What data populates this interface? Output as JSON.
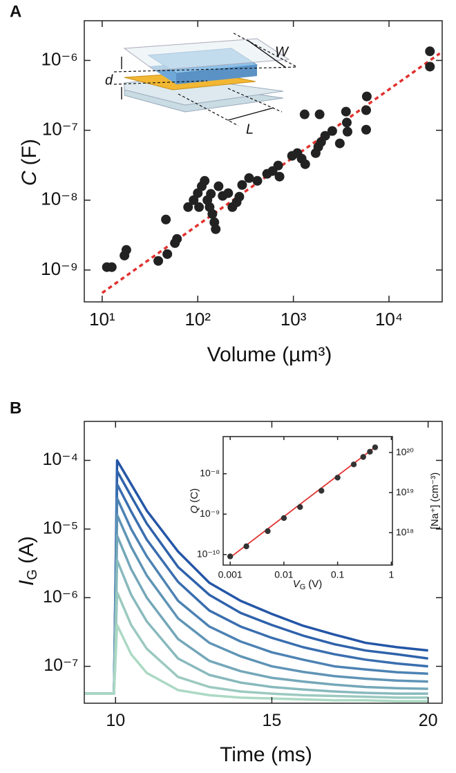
{
  "chart_data": [
    {
      "type": "scatter",
      "label": "A",
      "xlabel": "Volume (µm³)",
      "ylabel": [
        "C",
        "(F)"
      ],
      "annotations": [
        "W",
        "d",
        "L"
      ],
      "xlog": true,
      "ylog": true,
      "xlim": [
        6.5,
        36000
      ],
      "ylim": [
        3.5e-10,
        3.7e-06
      ],
      "xticks": [
        {
          "value": 10,
          "label": "10¹"
        },
        {
          "value": 100,
          "label": "10²"
        },
        {
          "value": 1000,
          "label": "10³"
        },
        {
          "value": 10000,
          "label": "10⁴"
        }
      ],
      "yticks": [
        {
          "value": 1e-09,
          "label": "10⁻⁹"
        },
        {
          "value": 1e-08,
          "label": "10⁻⁸"
        },
        {
          "value": 1e-07,
          "label": "10⁻⁷"
        },
        {
          "value": 1e-06,
          "label": "10⁻⁶"
        }
      ],
      "color": "#222222",
      "x": [
        11.2,
        12.6,
        17.1,
        17.9,
        38.6,
        48.0,
        57.7,
        60.6,
        46.4,
        79.2,
        90.5,
        100,
        110,
        118,
        103,
        126,
        133,
        142,
        149,
        154,
        137,
        165,
        182,
        208,
        230,
        255,
        272,
        291,
        344,
        420,
        531,
        606,
        693,
        716,
        968,
        1100,
        1220,
        1330,
        1310,
        1880,
        1710,
        1820,
        1950,
        2150,
        2550,
        3060,
        3550,
        3620,
        3680,
        5770,
        5770,
        5860,
        26800,
        26800
      ],
      "values": [
        1.1e-09,
        1.1e-09,
        1.61e-09,
        1.94e-09,
        1.35e-09,
        1.69e-09,
        2.43e-09,
        2.79e-09,
        5.28e-09,
        7.96e-09,
        1e-08,
        1.26e-08,
        1.58e-08,
        1.89e-08,
        7.96e-09,
        1e-08,
        7.96e-09,
        6.34e-09,
        4.82e-09,
        3.84e-09,
        1.23e-08,
        1.58e-08,
        1.15e-08,
        1.26e-08,
        7.96e-09,
        9.33e-09,
        1.12e-08,
        1.65e-08,
        2.07e-08,
        1.89e-08,
        2.38e-08,
        2.61e-08,
        3.13e-08,
        2.17e-08,
        4.31e-08,
        4.71e-08,
        3.93e-08,
        3.27e-08,
        1.69e-07,
        1.69e-07,
        4.71e-08,
        5.78e-08,
        6.79e-08,
        8.34e-08,
        9.77e-08,
        6.49e-08,
        1.85e-07,
        1.29e-07,
        9.55e-08,
        1.02e-07,
        1.94e-07,
        3.05e-07,
        1.35e-06,
        8.15e-07
      ],
      "fit": {
        "color": "#e0322f",
        "dashed": true,
        "x": [
          10,
          34000
        ],
        "y": [
          4.7e-10,
          1.26e-06
        ]
      }
    },
    {
      "type": "line",
      "label": "B",
      "xlabel": "Time (ms)",
      "ylabel": [
        "I",
        "G",
        "(A)"
      ],
      "xlog": false,
      "ylog": true,
      "xlim": [
        9,
        20.45
      ],
      "ylim": [
        2.9e-08,
        0.00037
      ],
      "xticks": [
        10,
        15,
        20
      ],
      "yticks": [
        {
          "value": 1e-07,
          "label": "10⁻⁷"
        },
        {
          "value": 1e-06,
          "label": "10⁻⁶"
        },
        {
          "value": 1e-05,
          "label": "10⁻⁵"
        },
        {
          "value": 0.0001,
          "label": "10⁻⁴"
        }
      ],
      "x": [
        9,
        9.95,
        10.05,
        10.5,
        11,
        12,
        13,
        14,
        15,
        16,
        17,
        18,
        19,
        20
      ],
      "series": [
        {
          "color": "#2456a6",
          "values": [
            4e-08,
            4e-08,
            0.0001,
            4.5e-05,
            1.85e-05,
            4.7e-06,
            1.65e-06,
            9e-07,
            5.8e-07,
            3.9e-07,
            2.9e-07,
            2.2e-07,
            1.9e-07,
            1.7e-07
          ]
        },
        {
          "color": "#2f62aa",
          "values": [
            4e-08,
            4e-08,
            7e-05,
            3e-05,
            1.2e-05,
            2.8e-06,
            1.1e-06,
            6e-07,
            4e-07,
            2.8e-07,
            2.1e-07,
            1.7e-07,
            1.5e-07,
            1.3e-07
          ]
        },
        {
          "color": "#3a6eaf",
          "values": [
            4e-08,
            4e-08,
            4.5e-05,
            1.8e-05,
            7e-06,
            1.7e-06,
            6.5e-07,
            3.8e-07,
            2.6e-07,
            1.9e-07,
            1.5e-07,
            1.25e-07,
            1.1e-07,
            1e-07
          ]
        },
        {
          "color": "#4d82b3",
          "values": [
            4e-08,
            4e-08,
            2.8e-05,
            1e-05,
            4e-06,
            9e-07,
            3.8e-07,
            2.3e-07,
            1.6e-07,
            1.25e-07,
            1e-07,
            9e-08,
            8.2e-08,
            7.8e-08
          ]
        },
        {
          "color": "#5f94b6",
          "values": [
            4e-08,
            4e-08,
            1.6e-05,
            5.5e-06,
            2.1e-06,
            5e-07,
            2.2e-07,
            1.4e-07,
            1e-07,
            8.3e-08,
            7.2e-08,
            6.6e-08,
            6.2e-08,
            6e-08
          ]
        },
        {
          "color": "#74a7b9",
          "values": [
            4e-08,
            4e-08,
            8e-06,
            2.6e-06,
            1e-06,
            2.5e-07,
            1.2e-07,
            8.5e-08,
            6.8e-08,
            6e-08,
            5.4e-08,
            5e-08,
            4.8e-08,
            4.7e-08
          ]
        },
        {
          "color": "#88b9bd",
          "values": [
            4e-08,
            4e-08,
            3.5e-06,
            1.1e-06,
            4.5e-07,
            1.3e-07,
            7.5e-08,
            5.8e-08,
            5e-08,
            4.6e-08,
            4.3e-08,
            4.1e-08,
            4e-08,
            4e-08
          ]
        },
        {
          "color": "#9bc9c0",
          "values": [
            4e-08,
            4e-08,
            1.2e-06,
            4e-07,
            1.8e-07,
            7e-08,
            5e-08,
            4.3e-08,
            4e-08,
            3.8e-08,
            3.7e-08,
            3.6e-08,
            3.5e-08,
            3.5e-08
          ]
        },
        {
          "color": "#acd9c4",
          "values": [
            4e-08,
            4e-08,
            4e-07,
            1.5e-07,
            8e-08,
            4.5e-08,
            3.8e-08,
            3.5e-08,
            3.4e-08,
            3.3e-08,
            3.2e-08,
            3.2e-08,
            3.1e-08,
            3.1e-08
          ]
        }
      ]
    },
    {
      "type": "scatter",
      "xlabel": [
        "V",
        "G",
        "(V)"
      ],
      "ylabel": [
        "Q",
        "(C)"
      ],
      "y2label": "[Na⁺] (cm⁻³)",
      "xlog": true,
      "ylog": true,
      "y2log": true,
      "xlim": [
        0.00074,
        1.05
      ],
      "ylim": [
        5.5e-11,
        8.3e-08
      ],
      "y2lim": [
        1.55e+17,
        2.5e+20
      ],
      "xticks": [
        0.001,
        0.01,
        0.1,
        1
      ],
      "yticks": [
        {
          "value": 1e-10,
          "label": "10⁻¹⁰"
        },
        {
          "value": 1e-09,
          "label": "10⁻⁹"
        },
        {
          "value": 1e-08,
          "label": "10⁻⁸"
        }
      ],
      "y2ticks": [
        {
          "value": 1e+18,
          "label": "10¹⁸"
        },
        {
          "value": 1e+19,
          "label": "10¹⁹"
        },
        {
          "value": 1e+20,
          "label": "10²⁰"
        }
      ],
      "color": "#333333",
      "x": [
        0.001,
        0.002,
        0.005,
        0.01,
        0.02,
        0.05,
        0.1,
        0.2,
        0.3,
        0.4,
        0.5
      ],
      "values": [
        9e-11,
        1.6e-10,
        3.8e-10,
        8e-10,
        1.5e-09,
        3.8e-09,
        8e-09,
        1.7e-08,
        2.6e-08,
        3.5e-08,
        4.5e-08
      ],
      "fit": {
        "color": "#e0322f",
        "dashed": false,
        "x": [
          0.001,
          0.55
        ],
        "y": [
          8.5e-11,
          5e-08
        ]
      }
    }
  ]
}
